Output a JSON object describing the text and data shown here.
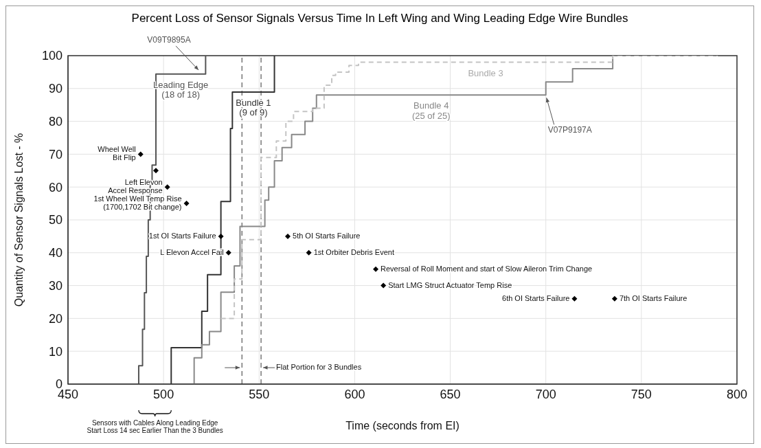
{
  "chart_data": {
    "type": "step",
    "title": "Percent Loss of Sensor Signals Versus Time In Left Wing and Wing Leading Edge Wire Bundles",
    "xlabel": "Time (seconds from EI)",
    "ylabel": "Quantity of Sensor Signals Lost - %",
    "xlim": [
      450,
      800
    ],
    "xticks": [
      450,
      500,
      550,
      600,
      650,
      700,
      750,
      800
    ],
    "ylim": [
      0,
      100
    ],
    "yticks": [
      0,
      10,
      20,
      30,
      40,
      50,
      60,
      70,
      80,
      90,
      100
    ],
    "grid": true,
    "marker": "none",
    "series": [
      {
        "name": "Leading Edge\n(18 of 18)",
        "color": "#555555",
        "x": [
          487,
          487,
          489,
          490,
          491,
          492,
          493,
          494,
          496,
          522
        ],
        "values": [
          0,
          5.6,
          16.7,
          27.8,
          38.9,
          50,
          61.1,
          66.7,
          94.4,
          100
        ]
      },
      {
        "name": "Bundle 1\n(9 of 9)",
        "color": "#333333",
        "x": [
          504,
          504,
          520,
          523,
          530,
          535,
          536,
          558
        ],
        "values": [
          0,
          11.1,
          22.2,
          33.3,
          55.6,
          77.8,
          88.9,
          100
        ]
      },
      {
        "name": "Bundle 4\n(25 of 25)",
        "color": "#888888",
        "x": [
          516,
          516,
          520,
          524,
          530,
          537,
          540,
          553,
          555,
          558,
          562,
          567,
          574,
          578,
          580,
          700,
          714,
          735,
          790
        ],
        "values": [
          0,
          8,
          12,
          16,
          28,
          36,
          48,
          56,
          60,
          68,
          72,
          76,
          80,
          84,
          88,
          92,
          96,
          100,
          100
        ]
      },
      {
        "name": "Bundle 3",
        "color": "#c4c4c4",
        "line_style": "dashed",
        "x": [
          530,
          537,
          541,
          551,
          559,
          564,
          568,
          578,
          584,
          588,
          590,
          597,
          602,
          735,
          790
        ],
        "values": [
          20,
          32,
          44,
          69,
          74,
          80,
          83,
          84,
          91,
          94,
          95,
          97,
          98,
          100,
          100
        ]
      },
      {
        "type": "scatter",
        "color": "#000000",
        "marker": "diamond",
        "x": [
          488,
          496,
          502,
          512,
          530,
          534,
          565,
          576,
          611,
          615,
          715,
          736
        ],
        "values": [
          70,
          65,
          60,
          55,
          45,
          40,
          45,
          40,
          35,
          30,
          26,
          26
        ]
      }
    ],
    "ref_lines": [
      {
        "axis": "x",
        "value": 541,
        "color": "#333333",
        "line_style": "dashed"
      },
      {
        "axis": "x",
        "value": 551,
        "color": "#333333",
        "line_style": "dashed"
      }
    ],
    "annotations": [
      {
        "text": "Wheel Well\nBit Flip",
        "x": 488,
        "y": 70
      },
      {
        "text": "Left Elevon\nAccel Response",
        "x": 502,
        "y": 60
      },
      {
        "text": "1st Wheel Well Temp Rise\n(1700,1702 Bit change)",
        "x": 512,
        "y": 55
      },
      {
        "text": "1st OI Starts Failure",
        "x": 530,
        "y": 45
      },
      {
        "text": "L Elevon Accel Fail",
        "x": 534,
        "y": 40
      },
      {
        "text": "5th OI Starts Failure",
        "x": 565,
        "y": 45
      },
      {
        "text": "1st Orbiter Debris Event",
        "x": 576,
        "y": 40
      },
      {
        "text": "Reversal of Roll Moment and start of Slow Aileron Trim Change",
        "x": 611,
        "y": 35
      },
      {
        "text": "Start LMG Struct Actuator Temp Rise",
        "x": 615,
        "y": 30
      },
      {
        "text": "6th OI Starts Failure",
        "x": 715,
        "y": 26
      },
      {
        "text": "7th OI Starts Failure",
        "x": 736,
        "y": 26
      },
      {
        "text": "V09T9895A",
        "x": 519,
        "y": 95
      },
      {
        "text": "V07P9197A",
        "x": 700,
        "y": 88
      },
      {
        "text": "Flat Portion for 3 Bundles",
        "x": 551,
        "y": 5
      },
      "Sensors with Cables Along Leading Edge\nStart Loss 14 sec Earlier Than the 3 Bundles"
    ]
  }
}
